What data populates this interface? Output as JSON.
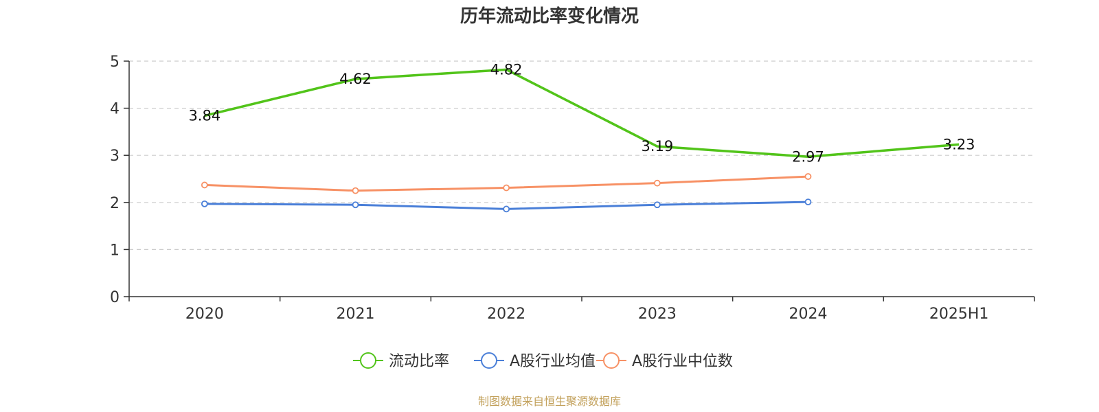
{
  "chart_data": {
    "type": "line",
    "title": "历年流动比率变化情况",
    "categories": [
      "2020",
      "2021",
      "2022",
      "2023",
      "2024",
      "2025H1"
    ],
    "ylim": [
      0,
      5
    ],
    "yticks": [
      "0",
      "1",
      "2",
      "3",
      "4",
      "5"
    ],
    "grid": true,
    "legend_position": "bottom-center",
    "series": [
      {
        "name": "流动比率",
        "color": "#52c41a",
        "values": [
          3.84,
          4.62,
          4.82,
          3.19,
          2.97,
          3.23
        ],
        "labels": [
          "3.84",
          "4.62",
          "4.82",
          "3.19",
          "2.97",
          "3.23"
        ]
      },
      {
        "name": "A股行业均值",
        "color": "#4a7fd8",
        "values": [
          1.97,
          1.95,
          1.86,
          1.95,
          2.01,
          null
        ]
      },
      {
        "name": "A股行业中位数",
        "color": "#f79165",
        "values": [
          2.37,
          2.25,
          2.31,
          2.41,
          2.55,
          null
        ]
      }
    ]
  },
  "source": "制图数据来自恒生聚源数据库"
}
